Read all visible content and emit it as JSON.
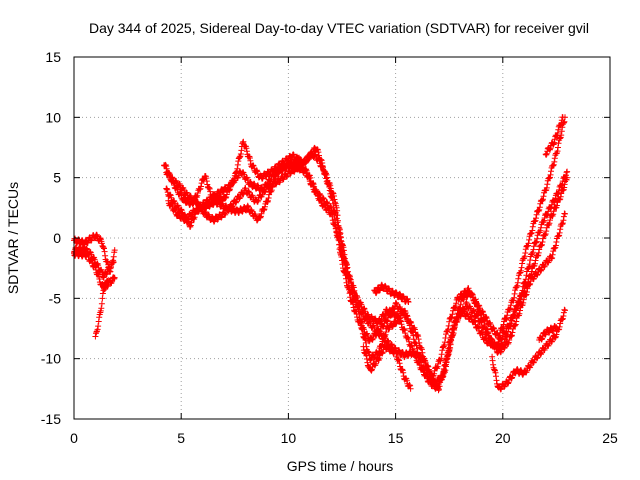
{
  "chart_data": {
    "type": "scatter",
    "title": "Day 344 of 2025, Sidereal Day-to-day VTEC variation (SDTVAR) for receiver gvil",
    "xlabel": "GPS time / hours",
    "ylabel": "SDTVAR / TECUs",
    "xlim": [
      0,
      25
    ],
    "ylim": [
      -15,
      15
    ],
    "x_ticks": [
      0,
      5,
      10,
      15,
      20,
      25
    ],
    "y_ticks": [
      -15,
      -10,
      -5,
      0,
      5,
      10,
      15
    ],
    "x_tick_labels": [
      "0",
      "5",
      "10",
      "15",
      "20",
      "25"
    ],
    "y_tick_labels": [
      "-15",
      "-10",
      "-5",
      "0",
      "5",
      "10",
      "15"
    ],
    "grid": true,
    "legend": "none",
    "marker": "+",
    "series_color": "#ff0000",
    "grid_color": "#a0a0a0",
    "tracks": [
      [
        [
          0.0,
          -0.2
        ],
        [
          0.5,
          -0.4
        ],
        [
          1.0,
          0.2
        ],
        [
          1.3,
          -0.3
        ],
        [
          1.5,
          -1.8
        ],
        [
          1.7,
          -2.8
        ],
        [
          1.9,
          -1.0
        ]
      ],
      [
        [
          0.0,
          -1.0
        ],
        [
          0.5,
          -0.9
        ],
        [
          0.8,
          -1.4
        ],
        [
          1.1,
          -2.3
        ],
        [
          1.4,
          -3.2
        ],
        [
          1.6,
          -2.6
        ],
        [
          1.85,
          -2.0
        ]
      ],
      [
        [
          0.0,
          -1.3
        ],
        [
          0.6,
          -1.4
        ],
        [
          1.0,
          -2.5
        ],
        [
          1.3,
          -4.0
        ],
        [
          1.6,
          -3.8
        ],
        [
          1.9,
          -3.3
        ]
      ],
      [
        [
          1.0,
          -8.3
        ],
        [
          1.2,
          -6.5
        ],
        [
          1.4,
          -4.2
        ],
        [
          1.6,
          -3.5
        ]
      ],
      [
        [
          4.2,
          6.2
        ],
        [
          4.5,
          5.0
        ],
        [
          4.8,
          4.0
        ],
        [
          5.1,
          3.2
        ],
        [
          5.5,
          2.8
        ],
        [
          5.8,
          3.8
        ],
        [
          6.1,
          5.2
        ],
        [
          6.4,
          3.5
        ],
        [
          7.0,
          3.2
        ],
        [
          7.5,
          5.0
        ],
        [
          7.9,
          8.0
        ],
        [
          8.3,
          6.0
        ],
        [
          8.7,
          5.0
        ],
        [
          9.2,
          5.5
        ],
        [
          9.7,
          6.2
        ],
        [
          10.2,
          6.8
        ],
        [
          10.7,
          6.2
        ],
        [
          11.1,
          7.0
        ],
        [
          11.4,
          6.5
        ],
        [
          11.8,
          5.0
        ],
        [
          12.2,
          3.0
        ],
        [
          12.5,
          -1.0
        ],
        [
          12.9,
          -4.5
        ],
        [
          13.5,
          -6.5
        ],
        [
          14.0,
          -7.5
        ],
        [
          14.6,
          -8.6
        ],
        [
          15.0,
          -9.3
        ],
        [
          15.4,
          -9.7
        ],
        [
          15.8,
          -9.5
        ],
        [
          16.3,
          -10.0
        ],
        [
          16.7,
          -11.5
        ],
        [
          17.1,
          -10.0
        ],
        [
          17.5,
          -7.0
        ],
        [
          17.9,
          -5.0
        ],
        [
          18.4,
          -4.3
        ],
        [
          18.9,
          -5.8
        ],
        [
          19.4,
          -7.2
        ],
        [
          19.8,
          -8.2
        ],
        [
          20.1,
          -6.8
        ],
        [
          20.5,
          -5.0
        ],
        [
          21.0,
          -1.5
        ],
        [
          21.5,
          1.5
        ],
        [
          22.0,
          4.0
        ],
        [
          22.5,
          7.0
        ],
        [
          22.9,
          10.0
        ]
      ],
      [
        [
          4.3,
          4.0
        ],
        [
          4.7,
          2.8
        ],
        [
          5.1,
          2.0
        ],
        [
          5.4,
          1.0
        ],
        [
          5.8,
          2.5
        ],
        [
          6.2,
          3.0
        ],
        [
          6.8,
          3.8
        ],
        [
          7.2,
          4.2
        ],
        [
          7.8,
          5.5
        ],
        [
          8.2,
          4.5
        ],
        [
          8.8,
          4.0
        ],
        [
          9.3,
          5.2
        ],
        [
          9.8,
          6.0
        ],
        [
          10.3,
          6.0
        ],
        [
          10.8,
          5.5
        ],
        [
          11.2,
          4.0
        ],
        [
          11.6,
          3.2
        ],
        [
          12.1,
          2.2
        ],
        [
          12.5,
          -2.0
        ],
        [
          12.9,
          -5.0
        ],
        [
          13.3,
          -7.0
        ],
        [
          13.8,
          -8.5
        ],
        [
          14.3,
          -7.5
        ],
        [
          14.7,
          -6.5
        ],
        [
          15.0,
          -5.5
        ],
        [
          15.5,
          -6.5
        ],
        [
          16.0,
          -8.0
        ],
        [
          16.4,
          -10.5
        ],
        [
          16.9,
          -12.5
        ],
        [
          17.3,
          -11.0
        ],
        [
          17.7,
          -7.5
        ],
        [
          18.1,
          -5.0
        ],
        [
          18.5,
          -4.5
        ],
        [
          19.0,
          -6.5
        ],
        [
          19.5,
          -8.8
        ],
        [
          20.0,
          -9.0
        ],
        [
          20.5,
          -6.5
        ],
        [
          20.9,
          -4.5
        ],
        [
          21.4,
          -1.0
        ],
        [
          21.9,
          1.5
        ],
        [
          22.5,
          3.5
        ],
        [
          23.0,
          5.5
        ]
      ],
      [
        [
          4.4,
          3.0
        ],
        [
          4.8,
          2.0
        ],
        [
          5.2,
          1.5
        ],
        [
          5.6,
          2.2
        ],
        [
          6.0,
          2.5
        ],
        [
          6.6,
          3.0
        ],
        [
          7.1,
          2.5
        ],
        [
          7.6,
          2.2
        ],
        [
          8.1,
          2.5
        ],
        [
          8.6,
          1.5
        ],
        [
          9.0,
          3.0
        ],
        [
          9.5,
          5.5
        ],
        [
          10.0,
          6.0
        ],
        [
          10.5,
          6.5
        ],
        [
          11.0,
          5.0
        ],
        [
          11.5,
          3.0
        ],
        [
          12.0,
          2.0
        ],
        [
          12.4,
          -0.5
        ],
        [
          12.8,
          -3.0
        ],
        [
          13.2,
          -5.0
        ],
        [
          13.7,
          -6.5
        ],
        [
          14.2,
          -7.0
        ],
        [
          14.6,
          -6.0
        ],
        [
          15.1,
          -6.5
        ],
        [
          15.6,
          -8.5
        ],
        [
          16.1,
          -10.5
        ],
        [
          16.6,
          -12.0
        ],
        [
          17.0,
          -12.5
        ],
        [
          17.4,
          -10.0
        ],
        [
          17.8,
          -7.0
        ],
        [
          18.3,
          -5.5
        ],
        [
          18.8,
          -6.5
        ],
        [
          19.3,
          -8.0
        ],
        [
          19.8,
          -9.5
        ],
        [
          20.3,
          -8.5
        ],
        [
          20.8,
          -6.0
        ],
        [
          21.3,
          -3.5
        ],
        [
          21.8,
          -2.5
        ],
        [
          22.3,
          -1.5
        ],
        [
          22.9,
          2.0
        ]
      ],
      [
        [
          4.3,
          5.5
        ],
        [
          4.6,
          4.8
        ],
        [
          5.0,
          4.2
        ],
        [
          5.3,
          3.5
        ],
        [
          5.7,
          3.0
        ],
        [
          6.1,
          2.0
        ],
        [
          6.5,
          1.5
        ],
        [
          7.0,
          2.0
        ],
        [
          7.5,
          3.0
        ],
        [
          8.0,
          4.0
        ],
        [
          8.5,
          3.0
        ],
        [
          9.0,
          4.2
        ],
        [
          9.6,
          4.8
        ],
        [
          10.1,
          5.5
        ],
        [
          10.6,
          6.0
        ],
        [
          11.0,
          6.8
        ],
        [
          11.3,
          7.5
        ],
        [
          11.6,
          6.0
        ],
        [
          12.0,
          3.5
        ],
        [
          12.4,
          0.5
        ],
        [
          12.8,
          -3.0
        ],
        [
          13.2,
          -5.5
        ],
        [
          13.5,
          -8.0
        ],
        [
          13.8,
          -10.0
        ],
        [
          14.2,
          -9.5
        ],
        [
          14.6,
          -7.5
        ],
        [
          15.0,
          -7.0
        ],
        [
          15.4,
          -6.0
        ],
        [
          15.8,
          -8.0
        ],
        [
          16.3,
          -11.0
        ],
        [
          16.8,
          -12.0
        ],
        [
          17.2,
          -11.5
        ],
        [
          17.6,
          -8.0
        ],
        [
          18.0,
          -6.0
        ],
        [
          18.6,
          -6.8
        ],
        [
          19.2,
          -8.5
        ],
        [
          19.7,
          -9.0
        ],
        [
          20.2,
          -7.5
        ],
        [
          20.7,
          -5.5
        ],
        [
          21.2,
          -3.5
        ],
        [
          21.7,
          -1.0
        ],
        [
          22.2,
          1.5
        ],
        [
          22.7,
          3.5
        ],
        [
          23.0,
          5.0
        ]
      ],
      [
        [
          13.5,
          -9.0
        ],
        [
          13.8,
          -11.0
        ],
        [
          14.2,
          -10.0
        ],
        [
          14.5,
          -9.0
        ],
        [
          15.0,
          -9.5
        ],
        [
          15.4,
          -11.5
        ],
        [
          15.7,
          -12.5
        ]
      ],
      [
        [
          14.0,
          -4.5
        ],
        [
          14.4,
          -4.0
        ],
        [
          14.8,
          -4.5
        ],
        [
          15.2,
          -4.8
        ],
        [
          15.6,
          -5.3
        ]
      ],
      [
        [
          19.5,
          -10.0
        ],
        [
          19.8,
          -12.5
        ],
        [
          20.2,
          -12.0
        ],
        [
          20.6,
          -11.0
        ],
        [
          21.0,
          -11.2
        ],
        [
          21.5,
          -10.0
        ],
        [
          22.0,
          -9.0
        ],
        [
          22.5,
          -8.0
        ],
        [
          22.9,
          -6.0
        ]
      ],
      [
        [
          21.7,
          -8.5
        ],
        [
          22.0,
          -7.8
        ],
        [
          22.5,
          -7.4
        ]
      ],
      [
        [
          22.0,
          7.0
        ],
        [
          22.4,
          8.0
        ],
        [
          22.8,
          10.0
        ]
      ]
    ]
  }
}
